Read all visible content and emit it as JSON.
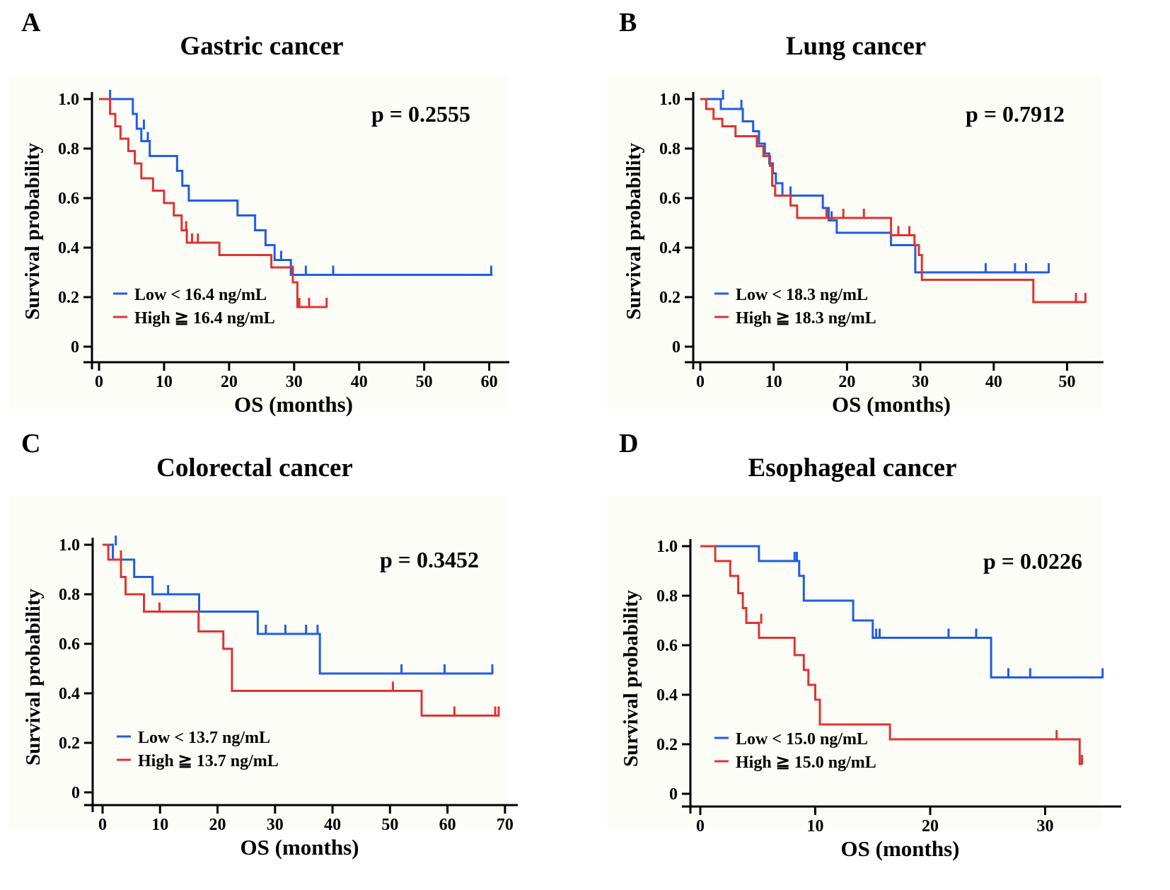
{
  "figure": {
    "panels": [
      "A",
      "B",
      "C",
      "D"
    ]
  },
  "chart_data": [
    {
      "type": "line",
      "subtype": "kaplan-meier",
      "letter": "A",
      "title": "Gastric cancer",
      "xlabel": "OS (months)",
      "ylabel": "Survival probability",
      "xlim": [
        0,
        62
      ],
      "ylim": [
        0,
        1.0
      ],
      "xticks": [
        0,
        10,
        20,
        30,
        40,
        50,
        60
      ],
      "yticks": [
        0,
        0.2,
        0.4,
        0.6,
        0.8,
        1.0
      ],
      "ytick_labels": [
        "0",
        "0.2",
        "0.4",
        "0.6",
        "0.8",
        "1.0"
      ],
      "p_value": "p = 0.2555",
      "series": [
        {
          "name": "Low < 16.4 ng/mL",
          "color": "#1f5de6",
          "steps": [
            [
              0,
              1.0
            ],
            [
              5.2,
              0.94
            ],
            [
              5.8,
              0.88
            ],
            [
              6.5,
              0.83
            ],
            [
              7.8,
              0.77
            ],
            [
              12.0,
              0.71
            ],
            [
              12.8,
              0.65
            ],
            [
              13.8,
              0.59
            ],
            [
              21.3,
              0.53
            ],
            [
              24.0,
              0.47
            ],
            [
              25.6,
              0.41
            ],
            [
              27.0,
              0.35
            ],
            [
              29.5,
              0.29
            ],
            [
              60.5,
              0.29
            ]
          ],
          "censors": [
            [
              1.7,
              1.0
            ],
            [
              6.9,
              0.88
            ],
            [
              7.5,
              0.83
            ],
            [
              28.0,
              0.35
            ],
            [
              29.8,
              0.29
            ],
            [
              31.8,
              0.29
            ],
            [
              36.0,
              0.29
            ],
            [
              60.3,
              0.29
            ]
          ]
        },
        {
          "name": "High ≧ 16.4 ng/mL",
          "color": "#e2322f",
          "steps": [
            [
              0,
              1.0
            ],
            [
              1.7,
              0.94
            ],
            [
              2.5,
              0.89
            ],
            [
              3.3,
              0.84
            ],
            [
              4.5,
              0.79
            ],
            [
              5.5,
              0.74
            ],
            [
              6.5,
              0.68
            ],
            [
              8.3,
              0.63
            ],
            [
              10.0,
              0.58
            ],
            [
              11.5,
              0.53
            ],
            [
              12.7,
              0.47
            ],
            [
              13.5,
              0.42
            ],
            [
              18.5,
              0.37
            ],
            [
              26.5,
              0.32
            ],
            [
              29.8,
              0.26
            ],
            [
              30.5,
              0.16
            ],
            [
              35.0,
              0.16
            ]
          ],
          "censors": [
            [
              13.4,
              0.47
            ],
            [
              14.3,
              0.42
            ],
            [
              15.2,
              0.42
            ],
            [
              30.8,
              0.16
            ],
            [
              32.3,
              0.16
            ],
            [
              35.0,
              0.16
            ]
          ]
        }
      ]
    },
    {
      "type": "line",
      "subtype": "kaplan-meier",
      "letter": "B",
      "title": "Lung cancer",
      "xlabel": "OS (months)",
      "ylabel": "Survival probability",
      "xlim": [
        0,
        54
      ],
      "ylim": [
        0,
        1.0
      ],
      "xticks": [
        0,
        10,
        20,
        30,
        40,
        50
      ],
      "yticks": [
        0,
        0.2,
        0.4,
        0.6,
        0.8,
        1.0
      ],
      "ytick_labels": [
        "0",
        "0.2",
        "0.4",
        "0.6",
        "0.8",
        "1.0"
      ],
      "p_value": "p = 0.7912",
      "series": [
        {
          "name": "Low < 18.3 ng/mL",
          "color": "#1f5de6",
          "steps": [
            [
              0,
              1.0
            ],
            [
              2.8,
              0.96
            ],
            [
              5.8,
              0.91
            ],
            [
              7.2,
              0.87
            ],
            [
              8.0,
              0.82
            ],
            [
              8.8,
              0.78
            ],
            [
              9.4,
              0.74
            ],
            [
              9.9,
              0.7
            ],
            [
              10.3,
              0.66
            ],
            [
              11.2,
              0.61
            ],
            [
              16.7,
              0.56
            ],
            [
              17.5,
              0.51
            ],
            [
              18.6,
              0.46
            ],
            [
              26.0,
              0.41
            ],
            [
              29.3,
              0.3
            ],
            [
              47.5,
              0.3
            ]
          ],
          "censors": [
            [
              3.1,
              1.0
            ],
            [
              5.6,
              0.96
            ],
            [
              12.3,
              0.61
            ],
            [
              17.9,
              0.51
            ],
            [
              38.9,
              0.3
            ],
            [
              42.9,
              0.3
            ],
            [
              44.4,
              0.3
            ],
            [
              47.5,
              0.3
            ]
          ]
        },
        {
          "name": "High ≧ 18.3 ng/mL",
          "color": "#e2322f",
          "steps": [
            [
              0,
              1.0
            ],
            [
              0.8,
              0.96
            ],
            [
              1.8,
              0.92
            ],
            [
              3.0,
              0.89
            ],
            [
              4.8,
              0.85
            ],
            [
              7.7,
              0.81
            ],
            [
              8.6,
              0.77
            ],
            [
              9.5,
              0.73
            ],
            [
              9.8,
              0.65
            ],
            [
              10.2,
              0.61
            ],
            [
              12.3,
              0.57
            ],
            [
              13.2,
              0.52
            ],
            [
              26.0,
              0.45
            ],
            [
              29.2,
              0.41
            ],
            [
              29.8,
              0.37
            ],
            [
              30.2,
              0.27
            ],
            [
              45.4,
              0.18
            ],
            [
              52.5,
              0.18
            ]
          ],
          "censors": [
            [
              17.2,
              0.52
            ],
            [
              19.5,
              0.52
            ],
            [
              22.3,
              0.52
            ],
            [
              27.0,
              0.45
            ],
            [
              28.5,
              0.45
            ],
            [
              51.2,
              0.18
            ],
            [
              52.5,
              0.18
            ]
          ]
        }
      ]
    },
    {
      "type": "line",
      "subtype": "kaplan-meier",
      "letter": "C",
      "title": "Colorectal cancer",
      "xlabel": "OS (months)",
      "ylabel": "Survival probability",
      "xlim": [
        0,
        71
      ],
      "ylim": [
        0,
        1.0
      ],
      "xticks": [
        0,
        10,
        20,
        30,
        40,
        50,
        60,
        70
      ],
      "yticks": [
        0,
        0.2,
        0.4,
        0.6,
        0.8,
        1.0
      ],
      "ytick_labels": [
        "0",
        "0.2",
        "0.4",
        "0.6",
        "0.8",
        "1.0"
      ],
      "p_value": "p = 0.3452",
      "series": [
        {
          "name": "Low < 13.7 ng/mL",
          "color": "#1f5de6",
          "steps": [
            [
              0,
              1.0
            ],
            [
              1.8,
              0.94
            ],
            [
              5.5,
              0.87
            ],
            [
              8.7,
              0.8
            ],
            [
              16.8,
              0.73
            ],
            [
              27.0,
              0.64
            ],
            [
              37.8,
              0.48
            ],
            [
              67.8,
              0.48
            ]
          ],
          "censors": [
            [
              2.3,
              1.0
            ],
            [
              11.4,
              0.8
            ],
            [
              28.4,
              0.64
            ],
            [
              31.8,
              0.64
            ],
            [
              35.4,
              0.64
            ],
            [
              37.4,
              0.64
            ],
            [
              52.0,
              0.48
            ],
            [
              59.5,
              0.48
            ],
            [
              67.8,
              0.48
            ]
          ]
        },
        {
          "name": "High ≧ 13.7 ng/mL",
          "color": "#e2322f",
          "steps": [
            [
              0,
              1.0
            ],
            [
              1.0,
              0.94
            ],
            [
              3.2,
              0.87
            ],
            [
              4.0,
              0.8
            ],
            [
              7.2,
              0.73
            ],
            [
              16.7,
              0.65
            ],
            [
              21.0,
              0.58
            ],
            [
              22.5,
              0.41
            ],
            [
              55.5,
              0.31
            ],
            [
              69.0,
              0.31
            ]
          ],
          "censors": [
            [
              3.2,
              0.94
            ],
            [
              9.9,
              0.73
            ],
            [
              50.5,
              0.41
            ],
            [
              61.2,
              0.31
            ],
            [
              68.3,
              0.31
            ],
            [
              68.9,
              0.31
            ]
          ]
        }
      ]
    },
    {
      "type": "line",
      "subtype": "kaplan-meier",
      "letter": "D",
      "title": "Esophageal cancer",
      "xlabel": "OS (months)",
      "ylabel": "Survival probability",
      "xlim": [
        0,
        36
      ],
      "ylim": [
        0,
        1.0
      ],
      "xticks": [
        0,
        10,
        20,
        30
      ],
      "yticks": [
        0,
        0.2,
        0.4,
        0.6,
        0.8,
        1.0
      ],
      "ytick_labels": [
        "0",
        "0.2",
        "0.4",
        "0.6",
        "0.8",
        "1.0"
      ],
      "p_value": "p = 0.0226",
      "series": [
        {
          "name": "Low < 15.0 ng/mL",
          "color": "#1f5de6",
          "steps": [
            [
              0,
              1.0
            ],
            [
              5.1,
              0.94
            ],
            [
              8.6,
              0.88
            ],
            [
              9.0,
              0.78
            ],
            [
              13.3,
              0.7
            ],
            [
              15.0,
              0.63
            ],
            [
              25.3,
              0.47
            ],
            [
              35.0,
              0.47
            ]
          ],
          "censors": [
            [
              8.2,
              0.94
            ],
            [
              8.4,
              0.94
            ],
            [
              15.3,
              0.63
            ],
            [
              15.6,
              0.63
            ],
            [
              21.6,
              0.63
            ],
            [
              24.0,
              0.63
            ],
            [
              26.8,
              0.47
            ],
            [
              28.7,
              0.47
            ],
            [
              35.0,
              0.47
            ]
          ]
        },
        {
          "name": "High ≧ 15.0 ng/mL",
          "color": "#e2322f",
          "steps": [
            [
              0,
              1.0
            ],
            [
              1.3,
              0.94
            ],
            [
              2.6,
              0.88
            ],
            [
              3.3,
              0.81
            ],
            [
              3.7,
              0.75
            ],
            [
              4.0,
              0.69
            ],
            [
              5.1,
              0.63
            ],
            [
              8.2,
              0.56
            ],
            [
              9.0,
              0.5
            ],
            [
              9.4,
              0.44
            ],
            [
              10.0,
              0.38
            ],
            [
              10.4,
              0.28
            ],
            [
              16.5,
              0.22
            ],
            [
              33.0,
              0.12
            ],
            [
              33.2,
              0.12
            ]
          ],
          "censors": [
            [
              5.3,
              0.69
            ],
            [
              31.0,
              0.22
            ],
            [
              33.2,
              0.12
            ]
          ]
        }
      ]
    }
  ]
}
